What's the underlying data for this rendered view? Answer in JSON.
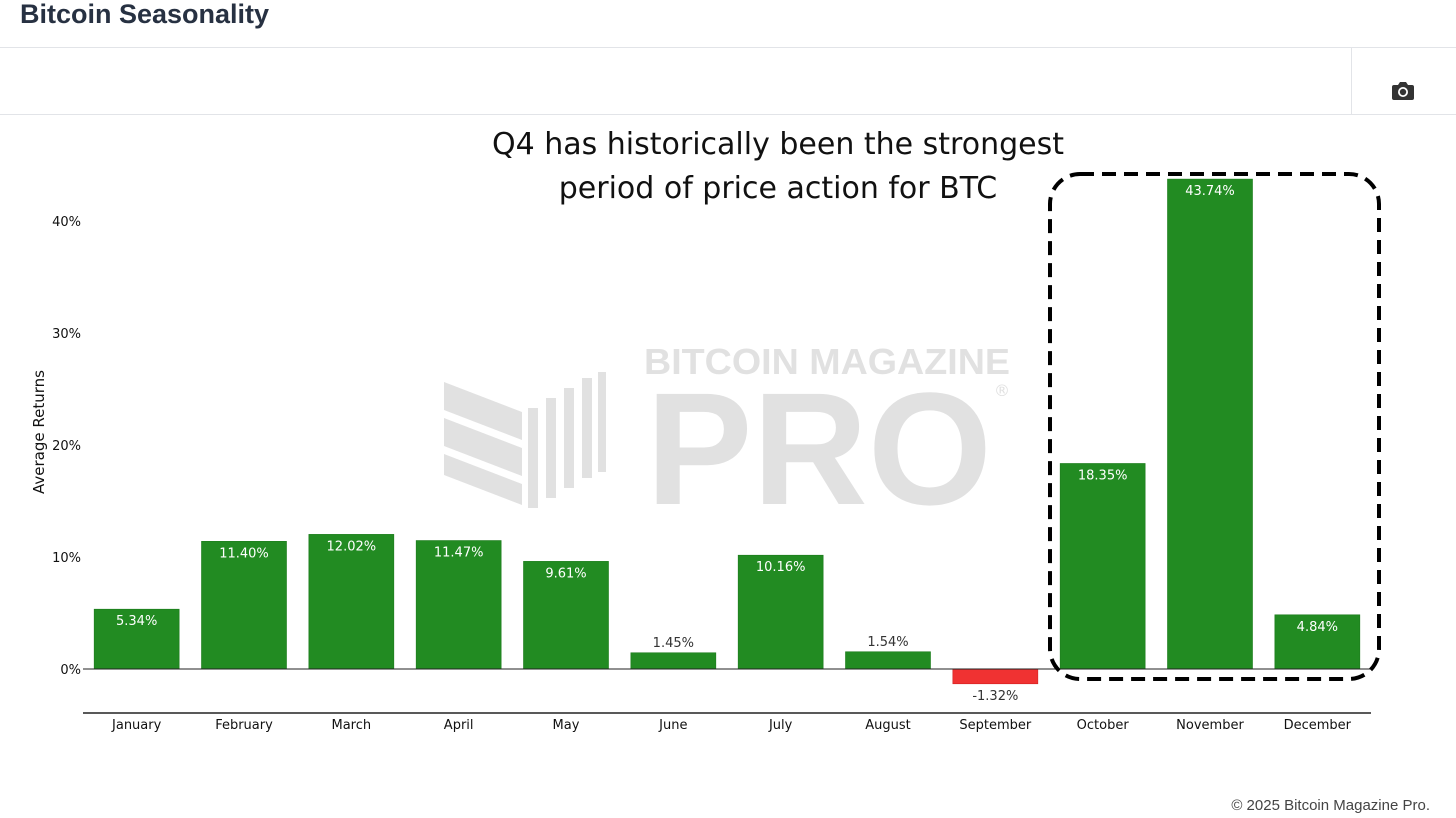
{
  "header": {
    "title": "Bitcoin Seasonality"
  },
  "toolbar": {
    "icons": [
      "camera-icon"
    ]
  },
  "watermark": {
    "line1": "BITCOIN MAGAZINE",
    "line2": "PRO",
    "mark": "®"
  },
  "annotation": {
    "line1": "Q4 has historically been the strongest",
    "line2": "period of price action for BTC"
  },
  "footer": {
    "copyright": "© 2025 Bitcoin Magazine Pro."
  },
  "colors": {
    "positive": "#228b22",
    "negative": "#f03232",
    "title": "#273142"
  },
  "chart_data": {
    "type": "bar",
    "categories": [
      "January",
      "February",
      "March",
      "April",
      "May",
      "June",
      "July",
      "August",
      "September",
      "October",
      "November",
      "December"
    ],
    "values": [
      5.34,
      11.4,
      12.02,
      11.47,
      9.61,
      1.45,
      10.16,
      1.54,
      -1.32,
      18.35,
      43.74,
      4.84
    ],
    "labels": [
      "5.34%",
      "11.40%",
      "12.02%",
      "11.47%",
      "9.61%",
      "1.45%",
      "10.16%",
      "1.54%",
      "-1.32%",
      "18.35%",
      "43.74%",
      "4.84%"
    ],
    "yticks": [
      0,
      10,
      20,
      30,
      40
    ],
    "ytick_labels": [
      "0%",
      "10%",
      "20%",
      "30%",
      "40%"
    ],
    "ylabel": "Average Returns",
    "xlabel": "",
    "ylim": [
      -4,
      44
    ],
    "grid": false,
    "highlight": {
      "categories": [
        "October",
        "November",
        "December"
      ],
      "style": "dashed-box"
    }
  }
}
